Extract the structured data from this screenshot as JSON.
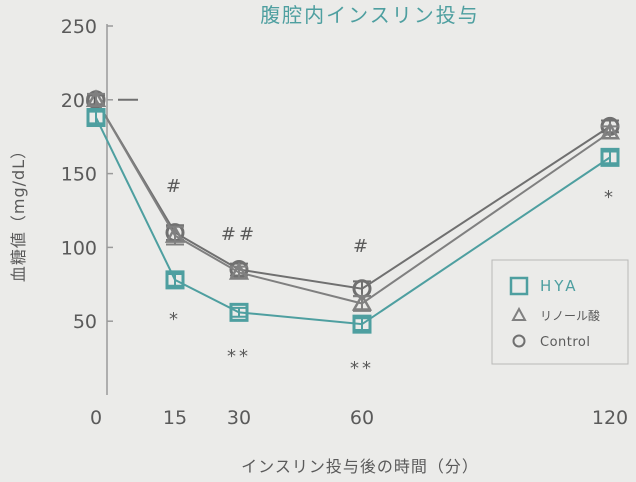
{
  "colors": {
    "background": "#ebebe9",
    "axis": "#9a9a9a",
    "text": "#5a5a5a",
    "title": "#4e9fa0",
    "hya": "#4e9fa0",
    "linoleic": "#808080",
    "control": "#707070"
  },
  "chart_data": {
    "type": "line",
    "title": "腹腔内インスリン投与",
    "xlabel": "インスリン投与後の時間（分）",
    "ylabel": "血糖値（mg/dL）",
    "xlim": [
      0,
      120
    ],
    "ylim": [
      0,
      250
    ],
    "x": [
      0,
      15,
      30,
      60,
      120
    ],
    "x_tick_labels": [
      "0",
      "15",
      "30",
      "60",
      "120"
    ],
    "y_ticks": [
      50,
      100,
      150,
      200,
      250
    ],
    "y_tick_labels": [
      "50",
      "100",
      "150",
      "200",
      "250"
    ],
    "grid": false,
    "legend_position": "right",
    "series": [
      {
        "name": "HYA",
        "marker": "square",
        "color": "#4e9fa0",
        "values": [
          188,
          78,
          56,
          48,
          161
        ],
        "errors": [
          4,
          4,
          3,
          4,
          4
        ]
      },
      {
        "name": "リノール酸",
        "marker": "triangle",
        "color": "#808080",
        "values": [
          200,
          108,
          83,
          62,
          178
        ],
        "errors": [
          4,
          6,
          4,
          5,
          4
        ]
      },
      {
        "name": "Control",
        "marker": "circle",
        "color": "#707070",
        "values": [
          200,
          110,
          85,
          72,
          182
        ],
        "errors": [
          3,
          5,
          4,
          5,
          4
        ]
      }
    ],
    "annotations": [
      {
        "x": 15,
        "text": "#",
        "position": "above"
      },
      {
        "x": 30,
        "text": "##",
        "position": "above"
      },
      {
        "x": 60,
        "text": "#",
        "position": "above"
      },
      {
        "x": 15,
        "text": "*",
        "position": "below"
      },
      {
        "x": 30,
        "text": "**",
        "position": "below"
      },
      {
        "x": 60,
        "text": "**",
        "position": "below"
      },
      {
        "x": 120,
        "text": "*",
        "position": "below"
      }
    ]
  }
}
